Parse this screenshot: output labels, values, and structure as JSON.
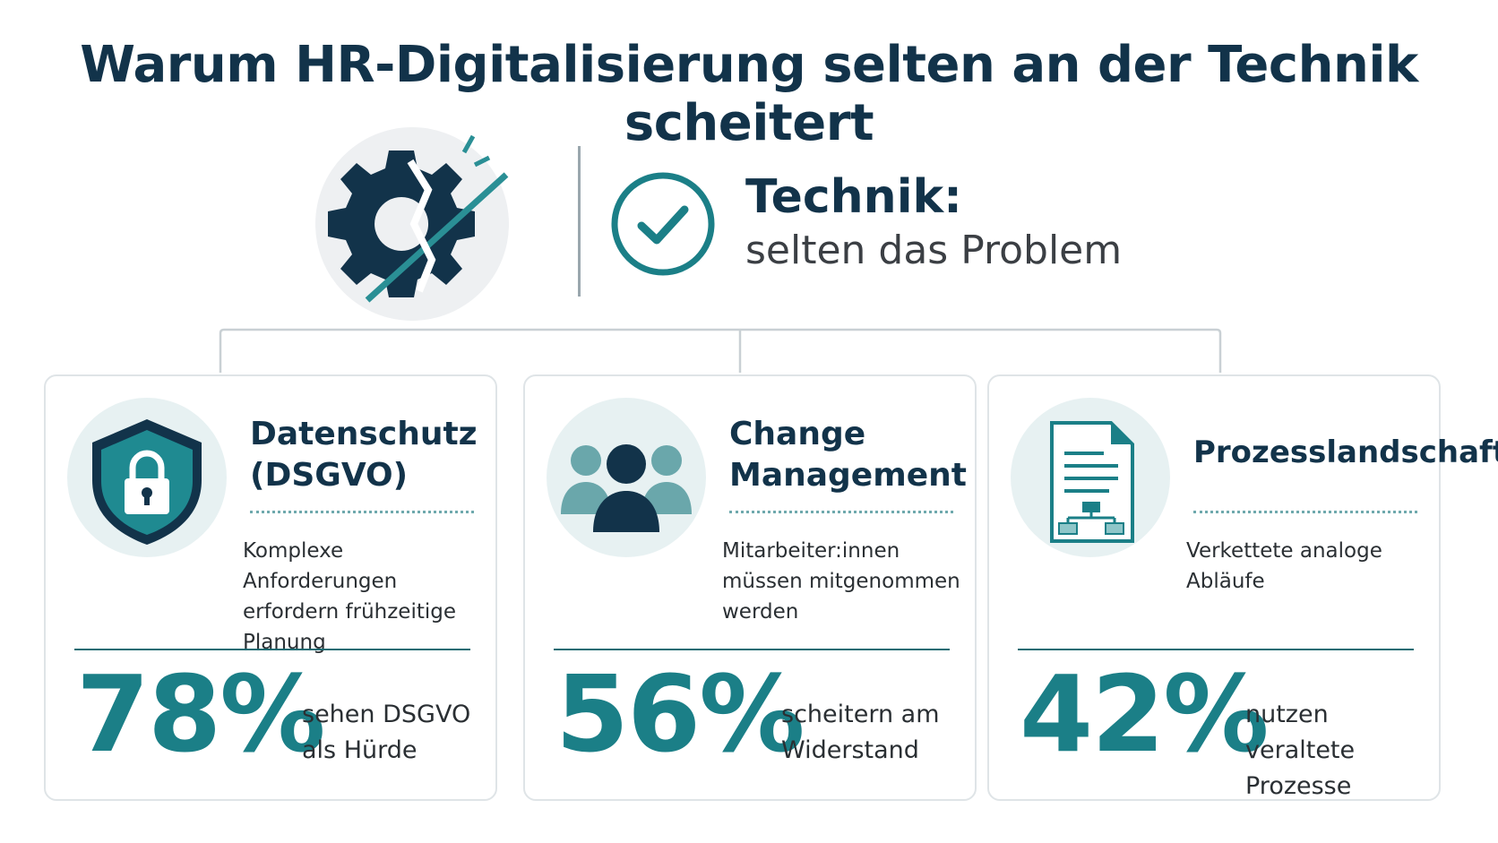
{
  "title": "Warum HR-Digitalisierung selten an der Technik scheitert",
  "hero": {
    "icon": "broken-gear-icon",
    "check_icon": "check-circle-icon",
    "heading": "Technik:",
    "subheading": "selten das Problem"
  },
  "colors": {
    "navy": "#12334a",
    "teal": "#1b7f87",
    "light_teal": "#e7f1f2"
  },
  "cards": [
    {
      "icon": "shield-lock-icon",
      "title_line1": "Datenschutz",
      "title_line2": "(DSGVO)",
      "description_line1": "Komplexe Anforderungen",
      "description_line2": "erfordern frühzeitige Planung",
      "description_line3": "",
      "percent": "78%",
      "stat_line1": "sehen DSGVO",
      "stat_line2": "als Hürde"
    },
    {
      "icon": "people-group-icon",
      "title_line1": "Change",
      "title_line2": "Management",
      "description_line1": "Mitarbeiter:innen",
      "description_line2": "müssen mitgenommen",
      "description_line3": "werden",
      "percent": "56%",
      "stat_line1": "scheitern am",
      "stat_line2": "Widerstand"
    },
    {
      "icon": "document-flow-icon",
      "title_line1": "Prozesslandschaft",
      "title_line2": "",
      "description_line1": "Verkettete analoge",
      "description_line2": "Abläufe",
      "description_line3": "",
      "percent": "42%",
      "stat_line1": "nutzen veraltete",
      "stat_line2": "Prozesse"
    }
  ]
}
